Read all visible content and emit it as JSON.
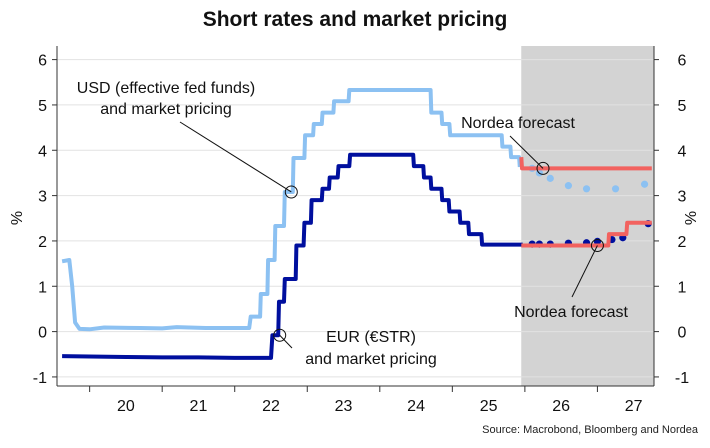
{
  "chart_data": {
    "type": "line",
    "title": "Short rates and market pricing",
    "source": "Source: Macrobond, Bloomberg and Nordea",
    "ylabel_left": "%",
    "ylabel_right": "%",
    "ylim": [
      -1.2,
      6.3
    ],
    "yticks": [
      -1,
      0,
      1,
      2,
      3,
      4,
      5,
      6
    ],
    "xlim": [
      2019.55,
      2027.78
    ],
    "xticks": [
      {
        "label": "20",
        "value": 2020.5
      },
      {
        "label": "21",
        "value": 2021.5
      },
      {
        "label": "22",
        "value": 2022.5
      },
      {
        "label": "23",
        "value": 2023.5
      },
      {
        "label": "24",
        "value": 2024.5
      },
      {
        "label": "25",
        "value": 2025.5
      },
      {
        "label": "26",
        "value": 2026.5
      },
      {
        "label": "27",
        "value": 2027.5
      }
    ],
    "shaded_region": {
      "from": 2025.95,
      "to": 2027.78,
      "color": "#d3d3d3"
    },
    "series": [
      {
        "key": "usd",
        "color": "#8cc1f2",
        "points": [
          [
            2019.62,
            1.55
          ],
          [
            2019.72,
            1.58
          ],
          [
            2019.76,
            1.0
          ],
          [
            2019.8,
            0.2
          ],
          [
            2019.86,
            0.06
          ],
          [
            2020.0,
            0.05
          ],
          [
            2020.2,
            0.09
          ],
          [
            2020.7,
            0.08
          ],
          [
            2021.0,
            0.07
          ],
          [
            2021.2,
            0.1
          ],
          [
            2021.6,
            0.08
          ],
          [
            2021.9,
            0.08
          ],
          [
            2022.2,
            0.08
          ],
          [
            2022.22,
            0.33
          ],
          [
            2022.35,
            0.33
          ],
          [
            2022.36,
            0.83
          ],
          [
            2022.45,
            0.83
          ],
          [
            2022.46,
            1.58
          ],
          [
            2022.55,
            1.58
          ],
          [
            2022.56,
            2.33
          ],
          [
            2022.68,
            2.33
          ],
          [
            2022.69,
            3.08
          ],
          [
            2022.8,
            3.08
          ],
          [
            2022.81,
            3.83
          ],
          [
            2022.96,
            3.83
          ],
          [
            2022.97,
            4.33
          ],
          [
            2023.08,
            4.33
          ],
          [
            2023.09,
            4.58
          ],
          [
            2023.2,
            4.58
          ],
          [
            2023.21,
            4.83
          ],
          [
            2023.36,
            4.83
          ],
          [
            2023.37,
            5.08
          ],
          [
            2023.57,
            5.08
          ],
          [
            2023.58,
            5.33
          ],
          [
            2024.7,
            5.33
          ],
          [
            2024.71,
            4.83
          ],
          [
            2024.85,
            4.83
          ],
          [
            2024.86,
            4.58
          ],
          [
            2024.96,
            4.58
          ],
          [
            2024.97,
            4.33
          ],
          [
            2025.68,
            4.33
          ],
          [
            2025.69,
            4.08
          ],
          [
            2025.8,
            4.08
          ],
          [
            2025.81,
            3.85
          ],
          [
            2025.92,
            3.85
          ],
          [
            2025.93,
            3.63
          ]
        ],
        "dots": [
          [
            2026.1,
            3.6
          ],
          [
            2026.2,
            3.5
          ],
          [
            2026.35,
            3.38
          ],
          [
            2026.6,
            3.22
          ],
          [
            2026.85,
            3.15
          ],
          [
            2027.25,
            3.15
          ],
          [
            2027.65,
            3.25
          ]
        ]
      },
      {
        "key": "eur",
        "color": "#000f9e",
        "points": [
          [
            2019.62,
            -0.54
          ],
          [
            2020.0,
            -0.55
          ],
          [
            2020.5,
            -0.56
          ],
          [
            2021.0,
            -0.57
          ],
          [
            2021.5,
            -0.57
          ],
          [
            2022.0,
            -0.58
          ],
          [
            2022.35,
            -0.58
          ],
          [
            2022.5,
            -0.58
          ],
          [
            2022.52,
            -0.08
          ],
          [
            2022.6,
            -0.08
          ],
          [
            2022.61,
            0.66
          ],
          [
            2022.68,
            0.66
          ],
          [
            2022.69,
            1.16
          ],
          [
            2022.84,
            1.16
          ],
          [
            2022.85,
            1.9
          ],
          [
            2022.95,
            1.9
          ],
          [
            2022.96,
            2.4
          ],
          [
            2023.05,
            2.4
          ],
          [
            2023.06,
            2.9
          ],
          [
            2023.2,
            2.9
          ],
          [
            2023.21,
            3.15
          ],
          [
            2023.3,
            3.15
          ],
          [
            2023.31,
            3.4
          ],
          [
            2023.42,
            3.4
          ],
          [
            2023.43,
            3.65
          ],
          [
            2023.58,
            3.65
          ],
          [
            2023.59,
            3.9
          ],
          [
            2024.46,
            3.9
          ],
          [
            2024.47,
            3.65
          ],
          [
            2024.6,
            3.65
          ],
          [
            2024.61,
            3.4
          ],
          [
            2024.7,
            3.4
          ],
          [
            2024.71,
            3.15
          ],
          [
            2024.85,
            3.15
          ],
          [
            2024.86,
            2.9
          ],
          [
            2024.95,
            2.9
          ],
          [
            2024.96,
            2.65
          ],
          [
            2025.1,
            2.65
          ],
          [
            2025.11,
            2.4
          ],
          [
            2025.22,
            2.4
          ],
          [
            2025.23,
            2.15
          ],
          [
            2025.4,
            2.15
          ],
          [
            2025.41,
            1.92
          ],
          [
            2025.97,
            1.92
          ]
        ],
        "dots": [
          [
            2026.1,
            1.93
          ],
          [
            2026.2,
            1.93
          ],
          [
            2026.35,
            1.93
          ],
          [
            2026.6,
            1.95
          ],
          [
            2026.85,
            1.96
          ],
          [
            2027.0,
            1.99
          ],
          [
            2027.2,
            2.03
          ],
          [
            2027.35,
            2.07
          ],
          [
            2027.7,
            2.38
          ]
        ]
      },
      {
        "key": "nordea_usd",
        "color": "#f2625f",
        "points": [
          [
            2025.95,
            3.85
          ],
          [
            2025.96,
            3.6
          ],
          [
            2027.75,
            3.6
          ]
        ]
      },
      {
        "key": "nordea_eur",
        "color": "#f2625f",
        "points": [
          [
            2025.95,
            1.9
          ],
          [
            2027.15,
            1.9
          ],
          [
            2027.16,
            2.15
          ],
          [
            2027.4,
            2.15
          ],
          [
            2027.41,
            2.4
          ],
          [
            2027.75,
            2.4
          ]
        ]
      }
    ],
    "annotations": [
      {
        "key": "usd_label",
        "lines": [
          "USD (effective fed funds)",
          "and market pricing"
        ],
        "target": [
          2022.78,
          3.08
        ]
      },
      {
        "key": "eur_label",
        "lines": [
          "EUR (€STR)",
          "and market pricing"
        ],
        "target": [
          2022.62,
          -0.08
        ]
      },
      {
        "key": "nordea_top",
        "lines": [
          "Nordea forecast"
        ],
        "target": [
          2026.25,
          3.6
        ]
      },
      {
        "key": "nordea_bottom",
        "lines": [
          "Nordea forecast"
        ],
        "target": [
          2027.0,
          1.9
        ]
      }
    ]
  }
}
